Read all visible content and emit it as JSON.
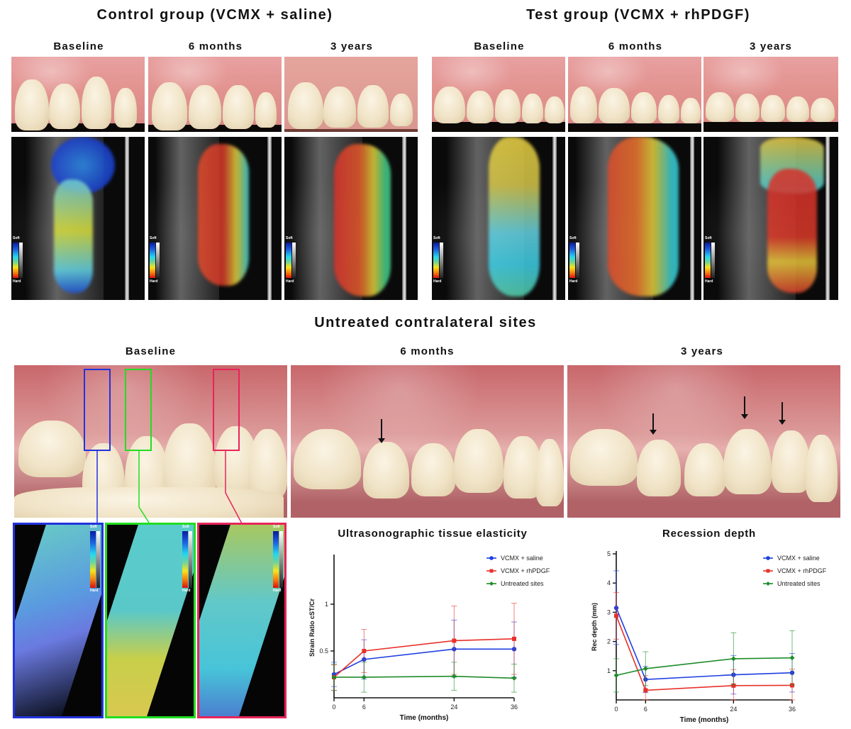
{
  "top": {
    "control": {
      "title": "Control group (VCMX + saline)",
      "columns": [
        "Baseline",
        "6 months",
        "3 years"
      ]
    },
    "test": {
      "title": "Test group (VCMX + rhPDGF)",
      "columns": [
        "Baseline",
        "6 months",
        "3 years"
      ]
    },
    "scale_labels": {
      "top": "Soft",
      "bottom": "Hard"
    }
  },
  "untreated": {
    "title": "Untreated contralateral sites",
    "columns": [
      "Baseline",
      "6 months",
      "3 years"
    ],
    "roi_colors": [
      "#2233dd",
      "#22dd22",
      "#e8245a"
    ]
  },
  "chart_data": [
    {
      "type": "line",
      "title": "Ultrasonographic tissue elasticity",
      "xlabel": "Time (months)",
      "ylabel": "Strain Ratio cST/Cr",
      "x": [
        0,
        6,
        24,
        36
      ],
      "xticks": [
        "0",
        "6",
        "24",
        "36"
      ],
      "yticks": [
        "0.5",
        "1"
      ],
      "ylim": [
        0,
        1.5
      ],
      "legend_position": "upper right",
      "series": [
        {
          "name": "VCMX + saline",
          "color": "#1f3fe0",
          "marker": "circle",
          "values": [
            0.25,
            0.41,
            0.52,
            0.52
          ],
          "err_low": [
            0.12,
            0.2,
            0.22,
            0.22
          ],
          "err_high": [
            0.38,
            0.62,
            0.83,
            0.81
          ]
        },
        {
          "name": "VCMX + rhPDGF",
          "color": "#e8302a",
          "marker": "square",
          "values": [
            0.22,
            0.5,
            0.61,
            0.63
          ],
          "err_low": [
            0.08,
            0.27,
            0.25,
            0.25
          ],
          "err_high": [
            0.35,
            0.73,
            0.98,
            1.01
          ]
        },
        {
          "name": "Untreated sites",
          "color": "#1e8c2a",
          "marker": "diamond",
          "values": [
            0.22,
            0.22,
            0.23,
            0.21
          ],
          "err_low": [
            0.08,
            0.06,
            0.08,
            0.06
          ],
          "err_high": [
            0.36,
            0.38,
            0.38,
            0.36
          ]
        }
      ]
    },
    {
      "type": "line",
      "title": "Recession depth",
      "xlabel": "Time (months)",
      "ylabel": "Rec depth (mm)",
      "x": [
        0,
        6,
        24,
        36
      ],
      "xticks": [
        "0",
        "6",
        "24",
        "36"
      ],
      "yticks": [
        "1",
        "2",
        "3",
        "4",
        "5"
      ],
      "ylim": [
        0,
        5
      ],
      "legend_position": "upper right",
      "series": [
        {
          "name": "VCMX + saline",
          "color": "#1f3fe0",
          "marker": "circle",
          "values": [
            3.15,
            0.7,
            0.86,
            0.93
          ],
          "err_low": [
            1.9,
            0.25,
            0.2,
            0.27
          ],
          "err_high": [
            4.42,
            1.15,
            1.52,
            1.59
          ]
        },
        {
          "name": "VCMX + rhPDGF",
          "color": "#e8302a",
          "marker": "square",
          "values": [
            2.88,
            0.33,
            0.49,
            0.5
          ],
          "err_low": [
            2.08,
            0.0,
            0.0,
            0.0
          ],
          "err_high": [
            3.68,
            0.83,
            1.04,
            1.05
          ]
        },
        {
          "name": "Untreated sites",
          "color": "#1e8c2a",
          "marker": "diamond",
          "values": [
            0.84,
            1.07,
            1.41,
            1.44
          ],
          "err_low": [
            0.27,
            0.49,
            0.52,
            0.51
          ],
          "err_high": [
            1.41,
            1.65,
            2.3,
            2.37
          ]
        }
      ]
    }
  ]
}
